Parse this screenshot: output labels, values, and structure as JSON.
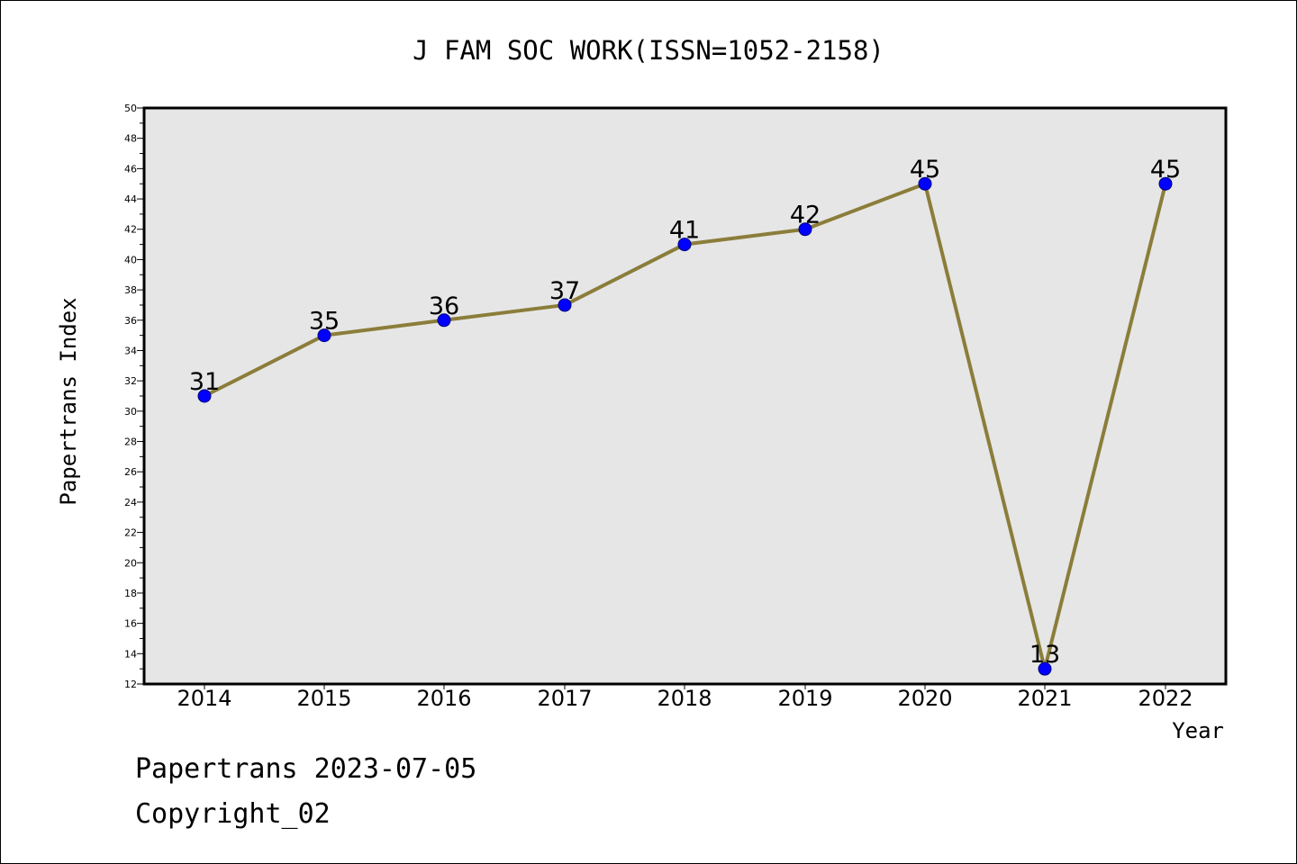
{
  "chart_data": {
    "type": "line",
    "title": "J FAM SOC WORK(ISSN=1052-2158)",
    "xlabel": "Year",
    "ylabel": "Papertrans Index",
    "categories": [
      "2014",
      "2015",
      "2016",
      "2017",
      "2018",
      "2019",
      "2020",
      "2021",
      "2022"
    ],
    "series": [
      {
        "values": [
          31,
          35,
          36,
          37,
          41,
          42,
          45,
          13,
          45
        ]
      }
    ],
    "ylim": [
      12,
      50
    ],
    "yticks": [
      12,
      14,
      16,
      18,
      20,
      22,
      24,
      26,
      28,
      30,
      32,
      34,
      36,
      38,
      40,
      42,
      44,
      46,
      48,
      50
    ],
    "data_labels": true,
    "grid": false,
    "legend": "none",
    "colors": {
      "line": "#8b7d3a",
      "marker_fill": "#0000ff",
      "marker_stroke": "#000080",
      "plot_background": "#e6e6e6"
    }
  },
  "footer": {
    "line1": "Papertrans 2023-07-05",
    "line2": "Copyright_02"
  }
}
